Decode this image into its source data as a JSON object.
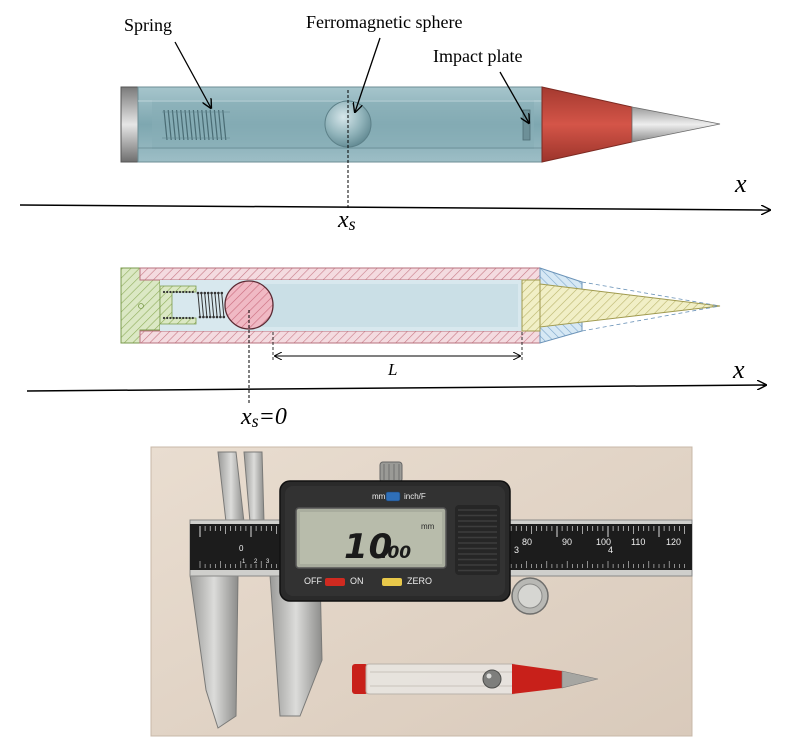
{
  "top_diagram": {
    "labels": {
      "spring": "Spring",
      "ferromagnetic_sphere": "Ferromagnetic sphere",
      "impact_plate": "Impact plate"
    },
    "axis_label": "x",
    "position_label_main": "x",
    "position_label_sub": "s"
  },
  "section_diagram": {
    "axis_label": "x",
    "origin_label_main": "x",
    "origin_label_sub": "s",
    "origin_label_eq": "=0",
    "length_label": "L"
  },
  "photo": {
    "caliper": {
      "reading_main": "10",
      "reading_decimal": ".00",
      "unit": "mm",
      "unit_toggle_left": "mm",
      "unit_toggle_right": "inch/F",
      "off_label": "OFF",
      "on_label": "ON",
      "zero_label": "ZERO",
      "scale_major_labels": [
        "80",
        "90",
        "100",
        "110",
        "120"
      ],
      "scale_inch_labels": [
        "3",
        "4"
      ],
      "jaw_zero_label": "0",
      "jaw_minor_labels": [
        "1",
        "2",
        "3"
      ]
    },
    "colors": {
      "probe_tip_red": "#c8201a",
      "off_button": "#d02a20",
      "zero_button": "#e8c84a",
      "toggle_blue": "#2f6fb8"
    }
  }
}
